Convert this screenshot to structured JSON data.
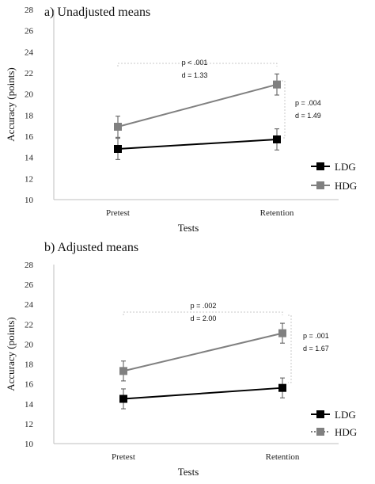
{
  "chart_data": [
    {
      "type": "line",
      "title": "a) Unadjusted means",
      "xlabel": "Tests",
      "ylabel": "Accuracy (points)",
      "ylim": [
        10,
        28
      ],
      "yticks": [
        10,
        12,
        14,
        16,
        18,
        20,
        22,
        24,
        26,
        28
      ],
      "categories": [
        "Pretest",
        "Retention"
      ],
      "legend_position": "right",
      "series": [
        {
          "name": "LDG",
          "values": [
            14.8,
            15.7
          ],
          "errors": [
            1.0,
            1.0
          ],
          "color": "#000000",
          "line_style": "solid"
        },
        {
          "name": "HDG",
          "values": [
            16.9,
            20.9
          ],
          "errors": [
            1.0,
            1.0
          ],
          "color": "#808080",
          "line_style": "solid"
        }
      ],
      "annotations": [
        {
          "between": "HDG Pretest vs HDG Retention",
          "lines": [
            "p < .001",
            "d = 1.33"
          ]
        },
        {
          "between": "HDG Retention vs LDG Retention",
          "lines": [
            "p = .004",
            "d = 1.49"
          ]
        }
      ]
    },
    {
      "type": "line",
      "title": "b) Adjusted means",
      "xlabel": "Tests",
      "ylabel": "Accuracy (points)",
      "ylim": [
        10,
        28
      ],
      "yticks": [
        10,
        12,
        14,
        16,
        18,
        20,
        22,
        24,
        26,
        28
      ],
      "categories": [
        "Pretest",
        "Retention"
      ],
      "legend_position": "right",
      "series": [
        {
          "name": "LDG",
          "values": [
            14.5,
            15.6
          ],
          "errors": [
            1.0,
            1.0
          ],
          "color": "#000000",
          "line_style": "solid"
        },
        {
          "name": "HDG",
          "values": [
            17.3,
            21.1
          ],
          "errors": [
            1.0,
            1.0
          ],
          "color": "#808080",
          "line_style": "solid"
        }
      ],
      "annotations": [
        {
          "between": "HDG Pretest vs HDG Retention",
          "lines": [
            "p = .002",
            "d = 2.00"
          ]
        },
        {
          "between": "HDG Retention vs LDG Retention",
          "lines": [
            "p = .001",
            "d = 1.67"
          ]
        }
      ]
    }
  ]
}
